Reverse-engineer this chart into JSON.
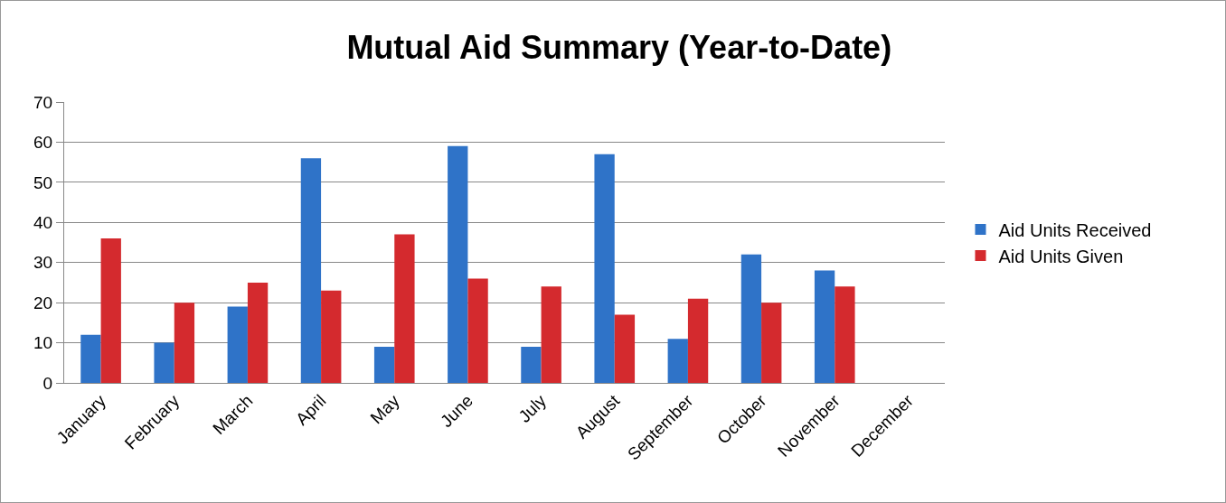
{
  "chart_data": {
    "type": "bar",
    "title": "Mutual Aid Summary (Year-to-Date)",
    "categories": [
      "January",
      "February",
      "March",
      "April",
      "May",
      "June",
      "July",
      "August",
      "September",
      "October",
      "November",
      "December"
    ],
    "series": [
      {
        "name": "Aid Units Received",
        "color": "#2f73c8",
        "values": [
          12,
          10,
          19,
          56,
          9,
          59,
          9,
          57,
          11,
          32,
          28,
          null
        ]
      },
      {
        "name": "Aid Units Given",
        "color": "#d42a2e",
        "values": [
          36,
          20,
          25,
          23,
          37,
          26,
          24,
          17,
          21,
          20,
          24,
          null
        ]
      }
    ],
    "ylim": [
      0,
      70
    ],
    "yticks": [
      0,
      10,
      20,
      30,
      40,
      50,
      60,
      70
    ],
    "grid": "y",
    "legend": "right"
  }
}
